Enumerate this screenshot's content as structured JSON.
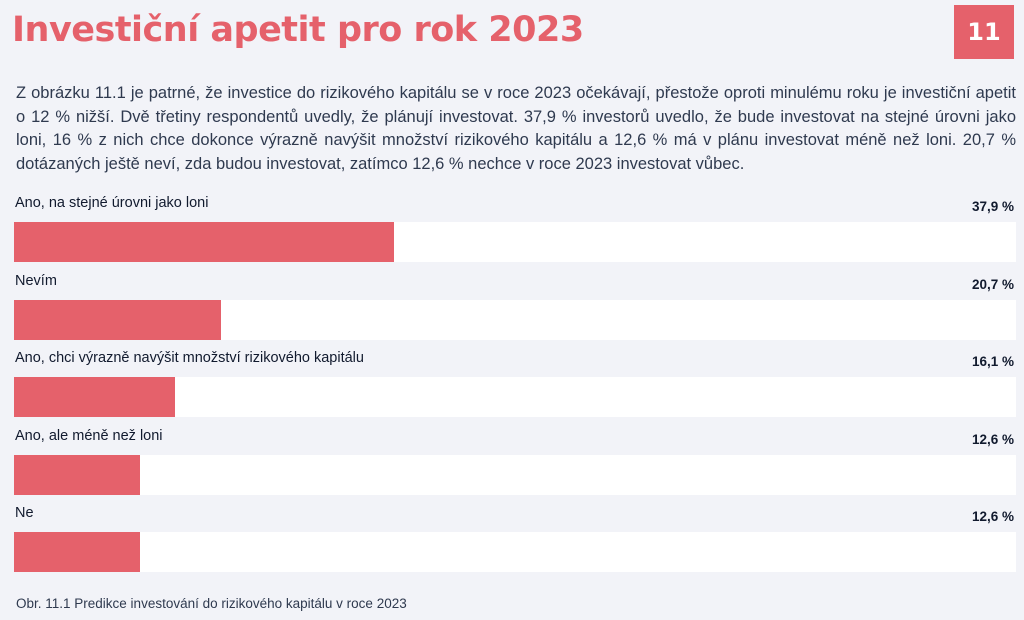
{
  "header": {
    "title": "Investiční apetit pro rok 2023",
    "page_number": "11"
  },
  "intro_text": "Z obrázku 11.1 je patrné, že investice do rizikového kapitálu se v roce 2023 očekávají, přestože oproti minulému roku je investiční apetit o 12 % nižší. Dvě třetiny respondentů uvedly, že plánují investovat. 37,9 % investorů uvedlo, že bude investovat na stejné úrovni jako loni, 16 % z nich chce dokonce výrazně navýšit množství rizikového kapitálu a 12,6 % má v plánu investovat méně než loni. 20,7 % dotázaných ještě neví, zda budou investovat, zatímco 12,6 % nechce v roce 2023 investovat vůbec.",
  "chart_data": {
    "type": "bar",
    "orientation": "horizontal",
    "categories": [
      "Ano, na stejné úrovni jako loni",
      "Nevím",
      "Ano, chci výrazně navýšit množství rizikového kapitálu",
      "Ano, ale méně než loni",
      "Ne"
    ],
    "values": [
      37.9,
      20.7,
      16.1,
      12.6,
      12.6
    ],
    "value_labels": [
      "37,9 %",
      "20,7 %",
      "16,1 %",
      "12,6 %",
      "12,6 %"
    ],
    "xlim": [
      0,
      100
    ],
    "bar_color": "#e5616b",
    "track_color": "#ffffff",
    "caption": "Obr. 11.1 Predikce investování do rizikového kapitálu v roce 2023"
  },
  "colors": {
    "accent": "#e5616b",
    "background": "#f2f3f8",
    "text": "#2f3a4f"
  }
}
